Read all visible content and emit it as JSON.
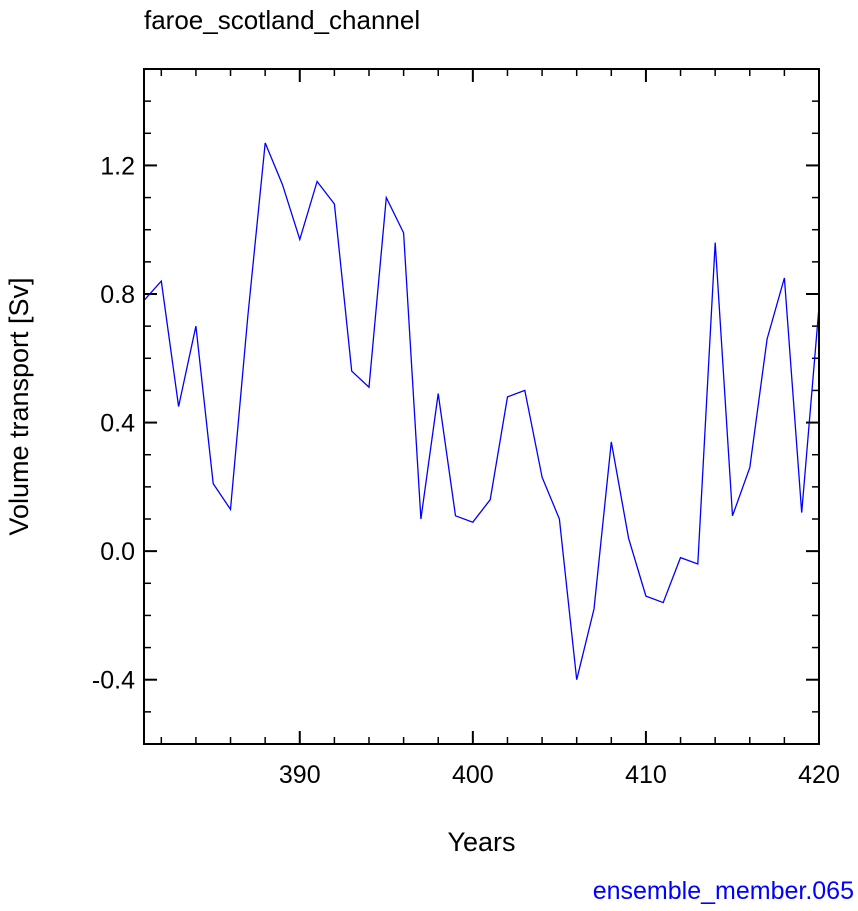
{
  "chart_data": {
    "type": "line",
    "title": "faroe_scotland_channel",
    "xlabel": "Years",
    "ylabel": "Volume transport [Sv]",
    "footer": "ensemble_member.065",
    "xlim": [
      381,
      420
    ],
    "ylim": [
      -0.6,
      1.5
    ],
    "x_ticks": [
      390,
      400,
      410,
      420
    ],
    "x_tick_labels": [
      "390",
      "400",
      "410",
      "420"
    ],
    "y_ticks": [
      -0.4,
      0.0,
      0.4,
      0.8,
      1.2
    ],
    "y_tick_labels": [
      "-0.4",
      "0.0",
      "0.4",
      "0.8",
      "1.2"
    ],
    "grid": false,
    "line_color": "#0000ff",
    "series": [
      {
        "x": [
          381,
          382,
          383,
          384,
          385,
          386,
          387,
          388,
          389,
          390,
          391,
          392,
          393,
          394,
          395,
          396,
          397,
          398,
          399,
          400,
          401,
          402,
          403,
          404,
          405,
          406,
          407,
          408,
          409,
          410,
          411,
          412,
          413,
          414,
          415,
          416,
          417,
          418,
          419,
          420
        ],
        "values": [
          0.78,
          0.84,
          0.45,
          0.7,
          0.21,
          0.13,
          0.73,
          1.27,
          1.14,
          0.97,
          1.15,
          1.08,
          0.56,
          0.51,
          1.1,
          0.99,
          0.1,
          0.49,
          0.11,
          0.09,
          0.16,
          0.48,
          0.5,
          0.23,
          0.1,
          -0.4,
          -0.18,
          0.34,
          0.04,
          -0.14,
          -0.16,
          -0.02,
          -0.04,
          0.96,
          0.11,
          0.26,
          0.66,
          0.85,
          0.12,
          0.76
        ]
      }
    ]
  }
}
